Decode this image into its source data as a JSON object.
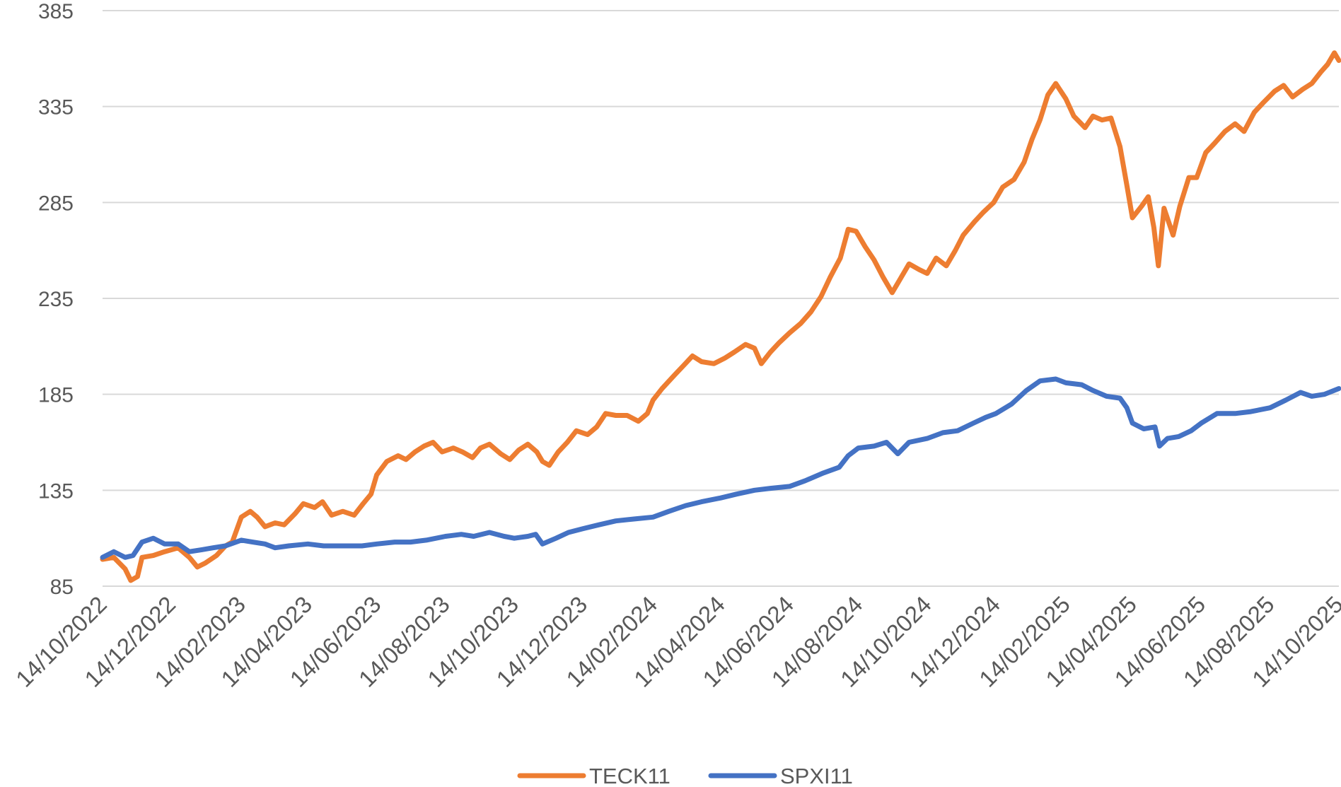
{
  "chart_data": {
    "type": "line",
    "title": "",
    "xlabel": "",
    "ylabel": "",
    "ylim": [
      85,
      385
    ],
    "y_ticks": [
      85,
      135,
      185,
      235,
      285,
      335,
      385
    ],
    "y_tick_labels": [
      "85",
      "135",
      "185",
      "235",
      "285",
      "335",
      "385"
    ],
    "x_range": [
      "2022-10-14",
      "2025-10-14"
    ],
    "x_tick_dates": [
      "2022-10-14",
      "2022-12-14",
      "2023-02-14",
      "2023-04-14",
      "2023-06-14",
      "2023-08-14",
      "2023-10-14",
      "2023-12-14",
      "2024-02-14",
      "2024-04-14",
      "2024-06-14",
      "2024-08-14",
      "2024-10-14",
      "2024-12-14",
      "2025-02-14",
      "2025-04-14",
      "2025-06-14",
      "2025-08-14",
      "2025-10-14"
    ],
    "x_tick_labels": [
      "14/10/2022",
      "14/12/2022",
      "14/02/2023",
      "14/04/2023",
      "14/06/2023",
      "14/08/2023",
      "14/10/2023",
      "14/12/2023",
      "14/02/2024",
      "14/04/2024",
      "14/06/2024",
      "14/08/2024",
      "14/10/2024",
      "14/12/2024",
      "14/02/2025",
      "14/04/2025",
      "14/06/2025",
      "14/08/2025",
      "14/10/2025"
    ],
    "grid": true,
    "legend_position": "bottom",
    "series": [
      {
        "name": "TECK11",
        "color": "#ED7D31",
        "points": [
          [
            "2022-10-14",
            99
          ],
          [
            "2022-10-24",
            100
          ],
          [
            "2022-11-03",
            94
          ],
          [
            "2022-11-08",
            88
          ],
          [
            "2022-11-14",
            90
          ],
          [
            "2022-11-18",
            100
          ],
          [
            "2022-11-28",
            101
          ],
          [
            "2022-12-08",
            103
          ],
          [
            "2022-12-20",
            105
          ],
          [
            "2022-12-30",
            100
          ],
          [
            "2023-01-06",
            95
          ],
          [
            "2023-01-13",
            97
          ],
          [
            "2023-01-23",
            101
          ],
          [
            "2023-01-31",
            106
          ],
          [
            "2023-02-06",
            108
          ],
          [
            "2023-02-14",
            121
          ],
          [
            "2023-02-22",
            124
          ],
          [
            "2023-02-28",
            121
          ],
          [
            "2023-03-07",
            116
          ],
          [
            "2023-03-16",
            118
          ],
          [
            "2023-03-24",
            117
          ],
          [
            "2023-04-03",
            123
          ],
          [
            "2023-04-10",
            128
          ],
          [
            "2023-04-20",
            126
          ],
          [
            "2023-04-27",
            129
          ],
          [
            "2023-05-05",
            122
          ],
          [
            "2023-05-15",
            124
          ],
          [
            "2023-05-25",
            122
          ],
          [
            "2023-06-02",
            128
          ],
          [
            "2023-06-09",
            133
          ],
          [
            "2023-06-14",
            143
          ],
          [
            "2023-06-23",
            150
          ],
          [
            "2023-07-03",
            153
          ],
          [
            "2023-07-10",
            151
          ],
          [
            "2023-07-18",
            155
          ],
          [
            "2023-07-26",
            158
          ],
          [
            "2023-08-03",
            160
          ],
          [
            "2023-08-11",
            155
          ],
          [
            "2023-08-21",
            157
          ],
          [
            "2023-08-29",
            155
          ],
          [
            "2023-09-07",
            152
          ],
          [
            "2023-09-14",
            157
          ],
          [
            "2023-09-22",
            159
          ],
          [
            "2023-10-02",
            154
          ],
          [
            "2023-10-10",
            151
          ],
          [
            "2023-10-18",
            156
          ],
          [
            "2023-10-26",
            159
          ],
          [
            "2023-11-03",
            155
          ],
          [
            "2023-11-08",
            150
          ],
          [
            "2023-11-14",
            148
          ],
          [
            "2023-11-22",
            155
          ],
          [
            "2023-11-30",
            160
          ],
          [
            "2023-12-08",
            166
          ],
          [
            "2023-12-18",
            164
          ],
          [
            "2023-12-26",
            168
          ],
          [
            "2024-01-03",
            175
          ],
          [
            "2024-01-12",
            174
          ],
          [
            "2024-01-22",
            174
          ],
          [
            "2024-02-01",
            171
          ],
          [
            "2024-02-09",
            175
          ],
          [
            "2024-02-14",
            182
          ],
          [
            "2024-02-22",
            188
          ],
          [
            "2024-03-04",
            195
          ],
          [
            "2024-03-12",
            200
          ],
          [
            "2024-03-20",
            205
          ],
          [
            "2024-03-28",
            202
          ],
          [
            "2024-04-08",
            201
          ],
          [
            "2024-04-18",
            204
          ],
          [
            "2024-04-26",
            207
          ],
          [
            "2024-05-06",
            211
          ],
          [
            "2024-05-14",
            209
          ],
          [
            "2024-05-20",
            201
          ],
          [
            "2024-05-28",
            207
          ],
          [
            "2024-06-05",
            212
          ],
          [
            "2024-06-14",
            217
          ],
          [
            "2024-06-24",
            222
          ],
          [
            "2024-07-03",
            228
          ],
          [
            "2024-07-12",
            236
          ],
          [
            "2024-07-20",
            246
          ],
          [
            "2024-07-29",
            256
          ],
          [
            "2024-08-05",
            271
          ],
          [
            "2024-08-12",
            270
          ],
          [
            "2024-08-20",
            262
          ],
          [
            "2024-08-28",
            255
          ],
          [
            "2024-09-05",
            246
          ],
          [
            "2024-09-13",
            238
          ],
          [
            "2024-09-20",
            245
          ],
          [
            "2024-09-28",
            253
          ],
          [
            "2024-10-07",
            250
          ],
          [
            "2024-10-14",
            248
          ],
          [
            "2024-10-22",
            256
          ],
          [
            "2024-10-31",
            252
          ],
          [
            "2024-11-08",
            260
          ],
          [
            "2024-11-15",
            268
          ],
          [
            "2024-11-25",
            275
          ],
          [
            "2024-12-03",
            280
          ],
          [
            "2024-12-12",
            285
          ],
          [
            "2024-12-20",
            293
          ],
          [
            "2024-12-30",
            297
          ],
          [
            "2025-01-08",
            306
          ],
          [
            "2025-01-15",
            318
          ],
          [
            "2025-01-22",
            328
          ],
          [
            "2025-01-29",
            341
          ],
          [
            "2025-02-05",
            347
          ],
          [
            "2025-02-14",
            339
          ],
          [
            "2025-02-21",
            330
          ],
          [
            "2025-03-03",
            324
          ],
          [
            "2025-03-10",
            330
          ],
          [
            "2025-03-18",
            328
          ],
          [
            "2025-03-26",
            329
          ],
          [
            "2025-04-03",
            314
          ],
          [
            "2025-04-09",
            294
          ],
          [
            "2025-04-14",
            277
          ],
          [
            "2025-04-22",
            283
          ],
          [
            "2025-04-28",
            288
          ],
          [
            "2025-05-03",
            272
          ],
          [
            "2025-05-07",
            252
          ],
          [
            "2025-05-12",
            282
          ],
          [
            "2025-05-20",
            268
          ],
          [
            "2025-05-26",
            283
          ],
          [
            "2025-06-03",
            298
          ],
          [
            "2025-06-10",
            298
          ],
          [
            "2025-06-18",
            311
          ],
          [
            "2025-06-26",
            316
          ],
          [
            "2025-07-05",
            322
          ],
          [
            "2025-07-14",
            326
          ],
          [
            "2025-07-22",
            322
          ],
          [
            "2025-07-31",
            332
          ],
          [
            "2025-08-08",
            337
          ],
          [
            "2025-08-18",
            343
          ],
          [
            "2025-08-26",
            346
          ],
          [
            "2025-09-03",
            340
          ],
          [
            "2025-09-12",
            344
          ],
          [
            "2025-09-20",
            347
          ],
          [
            "2025-09-28",
            353
          ],
          [
            "2025-10-04",
            357
          ],
          [
            "2025-10-10",
            363
          ],
          [
            "2025-10-14",
            359
          ]
        ]
      },
      {
        "name": "SPXI11",
        "color": "#4472C4",
        "points": [
          [
            "2022-10-14",
            100
          ],
          [
            "2022-10-24",
            103
          ],
          [
            "2022-11-03",
            100
          ],
          [
            "2022-11-10",
            101
          ],
          [
            "2022-11-18",
            108
          ],
          [
            "2022-11-28",
            110
          ],
          [
            "2022-12-08",
            107
          ],
          [
            "2022-12-20",
            107
          ],
          [
            "2022-12-30",
            103
          ],
          [
            "2023-01-10",
            104
          ],
          [
            "2023-01-20",
            105
          ],
          [
            "2023-01-31",
            106
          ],
          [
            "2023-02-14",
            109
          ],
          [
            "2023-02-24",
            108
          ],
          [
            "2023-03-07",
            107
          ],
          [
            "2023-03-16",
            105
          ],
          [
            "2023-03-28",
            106
          ],
          [
            "2023-04-14",
            107
          ],
          [
            "2023-04-28",
            106
          ],
          [
            "2023-05-15",
            106
          ],
          [
            "2023-06-01",
            106
          ],
          [
            "2023-06-14",
            107
          ],
          [
            "2023-06-30",
            108
          ],
          [
            "2023-07-14",
            108
          ],
          [
            "2023-07-28",
            109
          ],
          [
            "2023-08-14",
            111
          ],
          [
            "2023-08-28",
            112
          ],
          [
            "2023-09-08",
            111
          ],
          [
            "2023-09-22",
            113
          ],
          [
            "2023-10-05",
            111
          ],
          [
            "2023-10-14",
            110
          ],
          [
            "2023-10-26",
            111
          ],
          [
            "2023-11-02",
            112
          ],
          [
            "2023-11-08",
            107
          ],
          [
            "2023-11-20",
            110
          ],
          [
            "2023-12-01",
            113
          ],
          [
            "2023-12-14",
            115
          ],
          [
            "2023-12-28",
            117
          ],
          [
            "2024-01-12",
            119
          ],
          [
            "2024-01-28",
            120
          ],
          [
            "2024-02-14",
            121
          ],
          [
            "2024-02-28",
            124
          ],
          [
            "2024-03-14",
            127
          ],
          [
            "2024-03-28",
            129
          ],
          [
            "2024-04-14",
            131
          ],
          [
            "2024-04-28",
            133
          ],
          [
            "2024-05-14",
            135
          ],
          [
            "2024-05-28",
            136
          ],
          [
            "2024-06-14",
            137
          ],
          [
            "2024-06-28",
            140
          ],
          [
            "2024-07-14",
            144
          ],
          [
            "2024-07-28",
            147
          ],
          [
            "2024-08-05",
            153
          ],
          [
            "2024-08-14",
            157
          ],
          [
            "2024-08-28",
            158
          ],
          [
            "2024-09-08",
            160
          ],
          [
            "2024-09-18",
            154
          ],
          [
            "2024-09-28",
            160
          ],
          [
            "2024-10-14",
            162
          ],
          [
            "2024-10-28",
            165
          ],
          [
            "2024-11-10",
            166
          ],
          [
            "2024-11-24",
            170
          ],
          [
            "2024-12-05",
            173
          ],
          [
            "2024-12-14",
            175
          ],
          [
            "2024-12-28",
            180
          ],
          [
            "2025-01-10",
            187
          ],
          [
            "2025-01-22",
            192
          ],
          [
            "2025-02-05",
            193
          ],
          [
            "2025-02-14",
            191
          ],
          [
            "2025-02-28",
            190
          ],
          [
            "2025-03-10",
            187
          ],
          [
            "2025-03-22",
            184
          ],
          [
            "2025-04-03",
            183
          ],
          [
            "2025-04-09",
            178
          ],
          [
            "2025-04-14",
            170
          ],
          [
            "2025-04-24",
            167
          ],
          [
            "2025-05-04",
            168
          ],
          [
            "2025-05-08",
            158
          ],
          [
            "2025-05-15",
            162
          ],
          [
            "2025-05-25",
            163
          ],
          [
            "2025-06-05",
            166
          ],
          [
            "2025-06-14",
            170
          ],
          [
            "2025-06-28",
            175
          ],
          [
            "2025-07-14",
            175
          ],
          [
            "2025-07-28",
            176
          ],
          [
            "2025-08-14",
            178
          ],
          [
            "2025-08-28",
            182
          ],
          [
            "2025-09-10",
            186
          ],
          [
            "2025-09-20",
            184
          ],
          [
            "2025-10-01",
            185
          ],
          [
            "2025-10-14",
            188
          ]
        ]
      }
    ]
  }
}
